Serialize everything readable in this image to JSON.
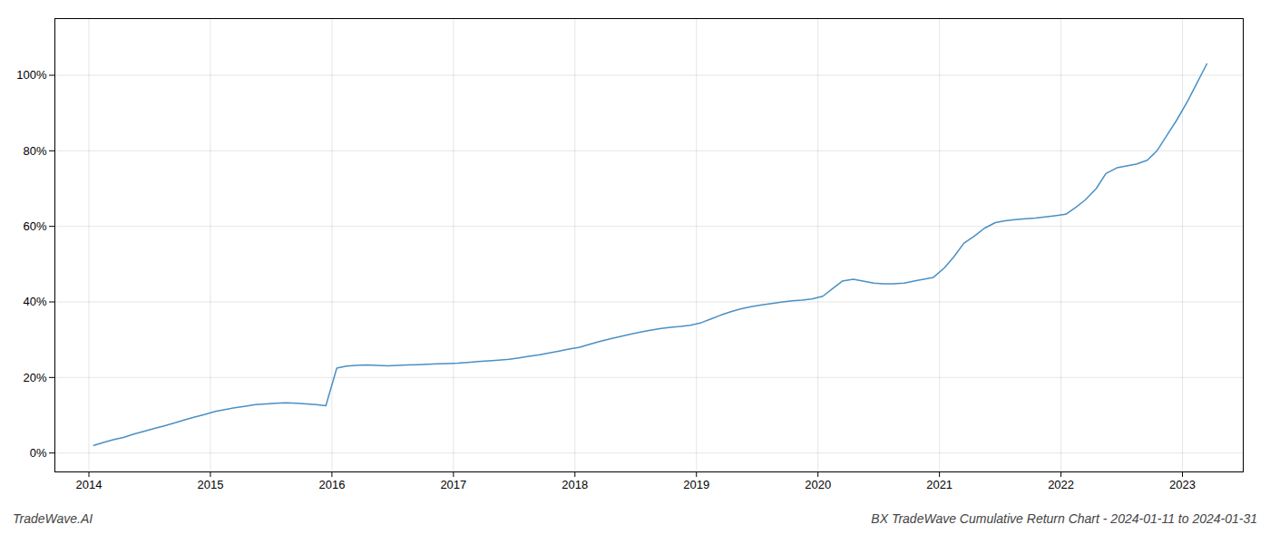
{
  "chart_data": {
    "type": "line",
    "title": "BX TradeWave Cumulative Return Chart - 2024-01-11 to 2024-01-31",
    "annotations": [
      "TradeWave.AI"
    ],
    "color": "#4a90c4",
    "grid": true,
    "x": [
      2014.04,
      2014.12,
      2014.2,
      2014.29,
      2014.37,
      2014.46,
      2014.54,
      2014.62,
      2014.71,
      2014.79,
      2014.87,
      2014.95,
      2015.04,
      2015.12,
      2015.2,
      2015.29,
      2015.37,
      2015.46,
      2015.54,
      2015.62,
      2015.71,
      2015.79,
      2015.87,
      2015.95,
      2016.04,
      2016.12,
      2016.2,
      2016.29,
      2016.37,
      2016.46,
      2016.54,
      2016.62,
      2016.71,
      2016.79,
      2016.87,
      2016.95,
      2017.04,
      2017.12,
      2017.2,
      2017.29,
      2017.37,
      2017.46,
      2017.54,
      2017.62,
      2017.71,
      2017.79,
      2017.87,
      2017.95,
      2018.04,
      2018.12,
      2018.2,
      2018.29,
      2018.37,
      2018.46,
      2018.54,
      2018.62,
      2018.71,
      2018.79,
      2018.87,
      2018.95,
      2019.04,
      2019.12,
      2019.2,
      2019.29,
      2019.37,
      2019.46,
      2019.54,
      2019.62,
      2019.71,
      2019.79,
      2019.87,
      2019.95,
      2020.04,
      2020.12,
      2020.2,
      2020.29,
      2020.37,
      2020.46,
      2020.54,
      2020.62,
      2020.71,
      2020.79,
      2020.87,
      2020.95,
      2021.04,
      2021.12,
      2021.2,
      2021.29,
      2021.37,
      2021.46,
      2021.54,
      2021.62,
      2021.71,
      2021.79,
      2021.87,
      2021.95,
      2022.04,
      2022.12,
      2022.2,
      2022.29,
      2022.37,
      2022.46,
      2022.54,
      2022.62,
      2022.71,
      2022.79,
      2022.87,
      2022.95,
      2023.04,
      2023.12,
      2023.2
    ],
    "values": [
      2.0,
      2.8,
      3.5,
      4.2,
      5.0,
      5.8,
      6.5,
      7.2,
      8.0,
      8.8,
      9.5,
      10.2,
      11.0,
      11.5,
      12.0,
      12.4,
      12.8,
      13.0,
      13.2,
      13.3,
      13.2,
      13.0,
      12.8,
      12.5,
      22.5,
      23.0,
      23.2,
      23.3,
      23.2,
      23.1,
      23.2,
      23.3,
      23.4,
      23.5,
      23.6,
      23.7,
      23.8,
      24.0,
      24.2,
      24.4,
      24.6,
      24.8,
      25.2,
      25.6,
      26.0,
      26.5,
      27.0,
      27.5,
      28.0,
      28.8,
      29.5,
      30.2,
      30.8,
      31.5,
      32.0,
      32.5,
      33.0,
      33.3,
      33.5,
      33.8,
      34.5,
      35.5,
      36.5,
      37.5,
      38.2,
      38.8,
      39.2,
      39.6,
      40.0,
      40.3,
      40.5,
      40.8,
      41.5,
      43.5,
      45.5,
      46.0,
      45.5,
      45.0,
      44.8,
      44.8,
      45.0,
      45.5,
      46.0,
      46.5,
      49.0,
      52.0,
      55.5,
      57.5,
      59.5,
      61.0,
      61.5,
      61.8,
      62.0,
      62.2,
      62.5,
      62.8,
      63.2,
      65.0,
      67.0,
      70.0,
      74.0,
      75.5,
      76.0,
      76.5,
      77.5,
      80.0,
      84.0,
      88.0,
      93.0,
      98.0,
      103.0
    ],
    "xlim": [
      2013.72,
      2023.5
    ],
    "xticks": [
      2014,
      2015,
      2016,
      2017,
      2018,
      2019,
      2020,
      2021,
      2022,
      2023
    ],
    "ylim": [
      -5,
      115
    ],
    "yticks": [
      {
        "value": 0,
        "label": "0%"
      },
      {
        "value": 20,
        "label": "20%"
      },
      {
        "value": 40,
        "label": "40%"
      },
      {
        "value": 60,
        "label": "60%"
      },
      {
        "value": 80,
        "label": "80%"
      },
      {
        "value": 100,
        "label": "100%"
      }
    ]
  }
}
